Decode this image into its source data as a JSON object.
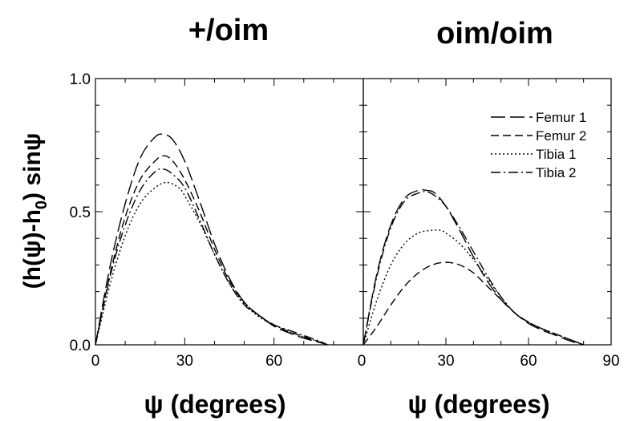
{
  "chart_data": [
    {
      "type": "line",
      "title": "+/oim",
      "xlabel": "ψ (degrees)",
      "ylabel": "(h(ψ)-h0) sinψ",
      "ylabel_main": "(h(ψ)-h",
      "ylabel_sub": "0",
      "ylabel_tail": ") sinψ",
      "xlim": [
        0,
        90
      ],
      "ylim": [
        0,
        1.0
      ],
      "xticks": [
        "0",
        "30",
        "60"
      ],
      "yticks": [
        "0.0",
        "0.5",
        "1.0"
      ],
      "series": [
        {
          "name": "Femur 1",
          "dash": "long-dash",
          "x": [
            0,
            5,
            10,
            15,
            20,
            23,
            26,
            30,
            35,
            40,
            45,
            50,
            55,
            60,
            65,
            70,
            75,
            78
          ],
          "y": [
            0,
            0.3,
            0.53,
            0.7,
            0.78,
            0.79,
            0.77,
            0.69,
            0.54,
            0.38,
            0.25,
            0.16,
            0.11,
            0.07,
            0.045,
            0.025,
            0.01,
            0
          ]
        },
        {
          "name": "Femur 2",
          "dash": "dash",
          "x": [
            0,
            5,
            10,
            15,
            20,
            23,
            26,
            30,
            35,
            40,
            45,
            50,
            55,
            60,
            65,
            70,
            75,
            78
          ],
          "y": [
            0,
            0.27,
            0.48,
            0.62,
            0.69,
            0.71,
            0.69,
            0.62,
            0.5,
            0.36,
            0.24,
            0.16,
            0.11,
            0.075,
            0.05,
            0.03,
            0.012,
            0
          ]
        },
        {
          "name": "Tibia 1",
          "dash": "dot",
          "x": [
            0,
            5,
            10,
            15,
            20,
            24,
            28,
            30,
            35,
            40,
            45,
            50,
            55,
            60,
            65,
            70,
            75,
            78
          ],
          "y": [
            0,
            0.23,
            0.41,
            0.53,
            0.59,
            0.61,
            0.59,
            0.56,
            0.46,
            0.34,
            0.23,
            0.155,
            0.105,
            0.075,
            0.05,
            0.03,
            0.012,
            0
          ]
        },
        {
          "name": "Tibia 2",
          "dash": "dash-dot",
          "x": [
            0,
            5,
            10,
            15,
            20,
            23,
            26,
            30,
            35,
            40,
            45,
            50,
            55,
            60,
            65,
            70,
            75,
            78
          ],
          "y": [
            0,
            0.26,
            0.45,
            0.58,
            0.65,
            0.66,
            0.64,
            0.59,
            0.47,
            0.34,
            0.23,
            0.15,
            0.11,
            0.075,
            0.055,
            0.035,
            0.015,
            0
          ]
        }
      ]
    },
    {
      "type": "line",
      "title": "oim/oim",
      "xlabel": "ψ (degrees)",
      "ylabel": "",
      "xlim": [
        0,
        90
      ],
      "ylim": [
        0,
        1.0
      ],
      "xticks": [
        "0",
        "30",
        "60",
        "90"
      ],
      "yticks": [],
      "legend": "top-right",
      "series": [
        {
          "name": "Femur 1",
          "dash": "long-dash",
          "x": [
            0,
            5,
            10,
            15,
            20,
            23,
            26,
            30,
            35,
            40,
            45,
            50,
            55,
            60,
            65,
            70,
            75,
            80
          ],
          "y": [
            0,
            0.27,
            0.45,
            0.55,
            0.58,
            0.58,
            0.57,
            0.52,
            0.43,
            0.33,
            0.24,
            0.17,
            0.12,
            0.08,
            0.055,
            0.035,
            0.015,
            0
          ]
        },
        {
          "name": "Femur 2",
          "dash": "dash",
          "x": [
            0,
            5,
            10,
            15,
            20,
            25,
            30,
            35,
            40,
            45,
            50,
            55,
            60,
            65,
            70,
            75,
            80
          ],
          "y": [
            0,
            0.07,
            0.15,
            0.22,
            0.27,
            0.3,
            0.31,
            0.3,
            0.27,
            0.22,
            0.17,
            0.12,
            0.085,
            0.06,
            0.04,
            0.02,
            0
          ]
        },
        {
          "name": "Tibia 1",
          "dash": "dot",
          "x": [
            0,
            5,
            10,
            15,
            20,
            25,
            28,
            30,
            35,
            40,
            45,
            50,
            55,
            60,
            65,
            70,
            75,
            80
          ],
          "y": [
            0,
            0.17,
            0.3,
            0.38,
            0.42,
            0.43,
            0.43,
            0.42,
            0.38,
            0.32,
            0.25,
            0.18,
            0.12,
            0.085,
            0.06,
            0.04,
            0.02,
            0
          ]
        },
        {
          "name": "Tibia 2",
          "dash": "dash-dot",
          "x": [
            0,
            5,
            10,
            15,
            20,
            23,
            26,
            30,
            35,
            40,
            45,
            50,
            55,
            60,
            65,
            70,
            75,
            80
          ],
          "y": [
            0,
            0.26,
            0.44,
            0.54,
            0.57,
            0.575,
            0.56,
            0.52,
            0.44,
            0.35,
            0.26,
            0.18,
            0.12,
            0.085,
            0.06,
            0.04,
            0.02,
            0
          ]
        }
      ]
    }
  ]
}
